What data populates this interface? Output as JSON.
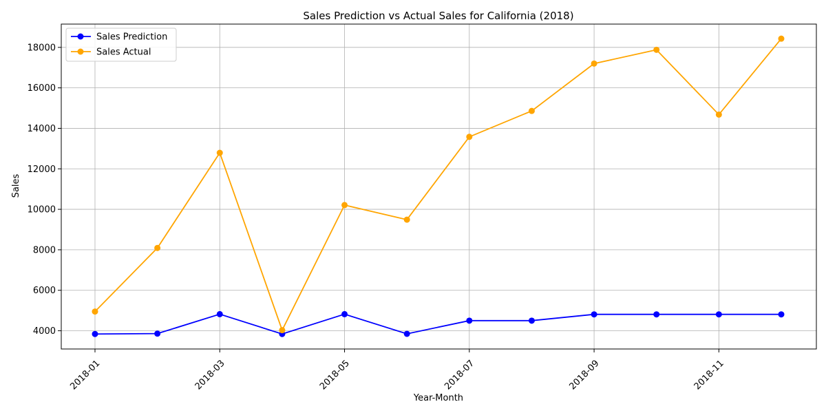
{
  "chart_data": {
    "type": "line",
    "title": "Sales Prediction vs Actual Sales for California (2018)",
    "xlabel": "Year-Month",
    "ylabel": "Sales",
    "x": [
      "2018-01",
      "2018-02",
      "2018-03",
      "2018-04",
      "2018-05",
      "2018-06",
      "2018-07",
      "2018-08",
      "2018-09",
      "2018-10",
      "2018-11",
      "2018-12"
    ],
    "x_tick_labels": [
      "2018-01",
      "2018-03",
      "2018-05",
      "2018-07",
      "2018-09",
      "2018-11"
    ],
    "y_ticks": [
      4000,
      6000,
      8000,
      10000,
      12000,
      14000,
      16000,
      18000
    ],
    "ylim": [
      3100,
      19150
    ],
    "grid": true,
    "legend_position": "top-left",
    "series": [
      {
        "name": "Sales Prediction",
        "color": "#0000ff",
        "values": [
          3840,
          3860,
          4820,
          3840,
          4820,
          3850,
          4500,
          4500,
          4810,
          4810,
          4810,
          4810
        ]
      },
      {
        "name": "Sales Actual",
        "color": "#ffa500",
        "values": [
          4950,
          8090,
          12790,
          4030,
          10210,
          9490,
          13580,
          14860,
          17200,
          17880,
          14680,
          18430
        ]
      }
    ]
  }
}
